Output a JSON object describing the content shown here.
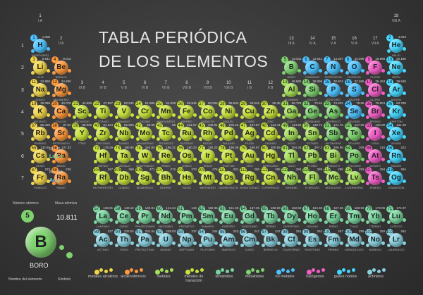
{
  "title": {
    "line1": "TABLA PERIÓDICA",
    "line2": "DE LOS ELEMENTOS"
  },
  "colors": {
    "alkali": "#f2d64a",
    "alkaline": "#ff9a3c",
    "lanthanide": "#7ad6a0",
    "actinide": "#8ad1e0",
    "transition": "#c9e23c",
    "post": "#a6e05a",
    "metalloid": "#7ed36f",
    "nonmetal": "#4cc3ff",
    "halogen": "#f35fc7",
    "noble": "#45d8ff"
  },
  "rows": [
    "1",
    "2",
    "3",
    "4",
    "5",
    "6",
    "7"
  ],
  "groups": [
    {
      "n": "1",
      "s": "I A"
    },
    {
      "n": "2",
      "s": "II A"
    },
    {
      "n": "3",
      "s": "III B"
    },
    {
      "n": "4",
      "s": "IV B"
    },
    {
      "n": "5",
      "s": "V B"
    },
    {
      "n": "6",
      "s": "VI B"
    },
    {
      "n": "7",
      "s": "VII B"
    },
    {
      "n": "8",
      "s": "VIII B"
    },
    {
      "n": "9",
      "s": "VIII B"
    },
    {
      "n": "10",
      "s": "VIII B"
    },
    {
      "n": "11",
      "s": "I B"
    },
    {
      "n": "12",
      "s": "II B"
    },
    {
      "n": "13",
      "s": "III A"
    },
    {
      "n": "14",
      "s": "IV A"
    },
    {
      "n": "15",
      "s": "V A"
    },
    {
      "n": "16",
      "s": "VI A"
    },
    {
      "n": "17",
      "s": "VII A"
    },
    {
      "n": "18",
      "s": "VIII A"
    }
  ],
  "ranges": {
    "la": "La-Lu",
    "la_nums": "57 - 71",
    "ac": "Ac-Lr",
    "ac_nums": "89 - 103"
  },
  "key": {
    "number": "5",
    "symbol": "B",
    "mass": "10.811",
    "name": "BORO",
    "label_number": "Número atómico",
    "label_mass": "Masa atómica",
    "label_name": "Nombre del elemento",
    "label_symbol": "Símbolo"
  },
  "legend": [
    {
      "label": "metales alcalinos",
      "color": "alkali"
    },
    {
      "label": "alcalinotérreos",
      "color": "alkaline"
    },
    {
      "label": "metales",
      "color": "post"
    },
    {
      "label": "metales de transición",
      "color": "transition"
    },
    {
      "label": "lantánidos",
      "color": "lanthanide"
    },
    {
      "label": "metaloides",
      "color": "metalloid"
    },
    {
      "label": "no metales",
      "color": "nonmetal"
    },
    {
      "label": "halógenos",
      "color": "halogen"
    },
    {
      "label": "gases nobles",
      "color": "noble"
    },
    {
      "label": "actínidos",
      "color": "actinide"
    }
  ],
  "elements": [
    [
      "1",
      "H",
      1,
      1,
      "nonmetal",
      "1.008",
      "HIDRÓGENO"
    ],
    [
      "2",
      "He",
      1,
      18,
      "noble",
      "4.003",
      "HELIO"
    ],
    [
      "3",
      "Li",
      2,
      1,
      "alkali",
      "6.941",
      "LITIO"
    ],
    [
      "4",
      "Be",
      2,
      2,
      "alkaline",
      "9.012",
      "BERILIO"
    ],
    [
      "5",
      "B",
      2,
      13,
      "metalloid",
      "10.811",
      "BORO"
    ],
    [
      "6",
      "C",
      2,
      14,
      "nonmetal",
      "12.011",
      "CARBONO"
    ],
    [
      "7",
      "N",
      2,
      15,
      "nonmetal",
      "14.007",
      "NITRÓGENO"
    ],
    [
      "8",
      "O",
      2,
      16,
      "nonmetal",
      "15.999",
      "OXÍGENO"
    ],
    [
      "9",
      "F",
      2,
      17,
      "halogen",
      "18.998",
      "FLÚOR"
    ],
    [
      "10",
      "Ne",
      2,
      18,
      "noble",
      "20.180",
      "NEÓN"
    ],
    [
      "11",
      "Na",
      3,
      1,
      "alkali",
      "22.990",
      "SODIO"
    ],
    [
      "12",
      "Mg",
      3,
      2,
      "alkaline",
      "24.305",
      "MAGNESIO"
    ],
    [
      "13",
      "Al",
      3,
      13,
      "post",
      "26.982",
      "ALUMINIO"
    ],
    [
      "14",
      "Si",
      3,
      14,
      "metalloid",
      "28.086",
      "SILICIO"
    ],
    [
      "15",
      "P",
      3,
      15,
      "nonmetal",
      "30.974",
      "FÓSFORO"
    ],
    [
      "16",
      "S",
      3,
      16,
      "nonmetal",
      "32.065",
      "AZUFRE"
    ],
    [
      "17",
      "Cl",
      3,
      17,
      "halogen",
      "35.453",
      "CLORO"
    ],
    [
      "18",
      "Ar",
      3,
      18,
      "noble",
      "39.948",
      "ARGÓN"
    ],
    [
      "19",
      "K",
      4,
      1,
      "alkali",
      "39.098",
      "POTASIO"
    ],
    [
      "20",
      "Ca",
      4,
      2,
      "alkaline",
      "40.078",
      "CALCIO"
    ],
    [
      "21",
      "Sc",
      4,
      3,
      "transition",
      "44.956",
      "ESCANDIO"
    ],
    [
      "22",
      "Ti",
      4,
      4,
      "transition",
      "47.867",
      "TITANIO"
    ],
    [
      "23",
      "V",
      4,
      5,
      "transition",
      "50.942",
      "VANADIO"
    ],
    [
      "24",
      "Cr",
      4,
      6,
      "transition",
      "51.996",
      "CROMO"
    ],
    [
      "25",
      "Mn",
      4,
      7,
      "transition",
      "54.938",
      "MANGANESO"
    ],
    [
      "26",
      "Fe",
      4,
      8,
      "transition",
      "55.845",
      "HIERRO"
    ],
    [
      "27",
      "Co",
      4,
      9,
      "transition",
      "58.933",
      "COBALTO"
    ],
    [
      "28",
      "Ni",
      4,
      10,
      "transition",
      "58.693",
      "NÍQUEL"
    ],
    [
      "29",
      "Cu",
      4,
      11,
      "transition",
      "63.546",
      "COBRE"
    ],
    [
      "30",
      "Zn",
      4,
      12,
      "transition",
      "65.38",
      "ZINC"
    ],
    [
      "31",
      "Ga",
      4,
      13,
      "post",
      "69.723",
      "GALIO"
    ],
    [
      "32",
      "Ge",
      4,
      14,
      "metalloid",
      "72.64",
      "GERMANIO"
    ],
    [
      "33",
      "As",
      4,
      15,
      "metalloid",
      "74.922",
      "ARSÉNICO"
    ],
    [
      "34",
      "Se",
      4,
      16,
      "nonmetal",
      "78.96",
      "SELENIO"
    ],
    [
      "35",
      "Br",
      4,
      17,
      "halogen",
      "79.904",
      "BROMO"
    ],
    [
      "36",
      "Kr",
      4,
      18,
      "noble",
      "83.798",
      "KRIPTÓN"
    ],
    [
      "37",
      "Rb",
      5,
      1,
      "alkali",
      "85.468",
      "RUBIDIO"
    ],
    [
      "38",
      "Sr",
      5,
      2,
      "alkaline",
      "87.62",
      "ESTRONCIO"
    ],
    [
      "39",
      "Y",
      5,
      3,
      "transition",
      "88.906",
      "ITRIO"
    ],
    [
      "40",
      "Zr",
      5,
      4,
      "transition",
      "91.224",
      "CIRCONIO"
    ],
    [
      "41",
      "Nb",
      5,
      5,
      "transition",
      "92.906",
      "NIOBIO"
    ],
    [
      "42",
      "Mo",
      5,
      6,
      "transition",
      "95.96",
      "MOLIBDENO"
    ],
    [
      "43",
      "Tc",
      5,
      7,
      "transition",
      "98",
      "TECNECIO"
    ],
    [
      "44",
      "Ru",
      5,
      8,
      "transition",
      "101.07",
      "RUTENIO"
    ],
    [
      "45",
      "Rh",
      5,
      9,
      "transition",
      "102.91",
      "RODIO"
    ],
    [
      "46",
      "Pd",
      5,
      10,
      "transition",
      "106.42",
      "PALADIO"
    ],
    [
      "47",
      "Ag",
      5,
      11,
      "transition",
      "107.87",
      "PLATA"
    ],
    [
      "48",
      "Cd",
      5,
      12,
      "transition",
      "112.41",
      "CADMIO"
    ],
    [
      "49",
      "In",
      5,
      13,
      "post",
      "114.82",
      "INDIO"
    ],
    [
      "50",
      "Sn",
      5,
      14,
      "post",
      "118.71",
      "ESTAÑO"
    ],
    [
      "51",
      "Sb",
      5,
      15,
      "metalloid",
      "121.76",
      "ANTIMONIO"
    ],
    [
      "52",
      "Te",
      5,
      16,
      "metalloid",
      "127.60",
      "TELURIO"
    ],
    [
      "53",
      "I",
      5,
      17,
      "halogen",
      "126.90",
      "YODO"
    ],
    [
      "54",
      "Xe",
      5,
      18,
      "noble",
      "131.29",
      "XENÓN"
    ],
    [
      "55",
      "Cs",
      6,
      1,
      "alkali",
      "132.91",
      "CESIO"
    ],
    [
      "56",
      "Ba",
      6,
      2,
      "alkaline",
      "137.33",
      "BARIO"
    ],
    [
      "72",
      "Hf",
      6,
      4,
      "transition",
      "178.49",
      "HAFNIO"
    ],
    [
      "73",
      "Ta",
      6,
      5,
      "transition",
      "180.95",
      "TÁNTALO"
    ],
    [
      "74",
      "W",
      6,
      6,
      "transition",
      "183.84",
      "WOLFRAMIO"
    ],
    [
      "75",
      "Re",
      6,
      7,
      "transition",
      "186.21",
      "RENIO"
    ],
    [
      "76",
      "Os",
      6,
      8,
      "transition",
      "190.23",
      "OSMIO"
    ],
    [
      "77",
      "Ir",
      6,
      9,
      "transition",
      "192.22",
      "IRIDIO"
    ],
    [
      "78",
      "Pt",
      6,
      10,
      "transition",
      "195.08",
      "PLATINO"
    ],
    [
      "79",
      "Au",
      6,
      11,
      "transition",
      "196.97",
      "ORO"
    ],
    [
      "80",
      "Hg",
      6,
      12,
      "transition",
      "200.59",
      "MERCURIO"
    ],
    [
      "81",
      "Tl",
      6,
      13,
      "post",
      "204.38",
      "TALIO"
    ],
    [
      "82",
      "Pb",
      6,
      14,
      "post",
      "207.2",
      "PLOMO"
    ],
    [
      "83",
      "Bi",
      6,
      15,
      "post",
      "208.98",
      "BISMUTO"
    ],
    [
      "84",
      "Po",
      6,
      16,
      "metalloid",
      "209",
      "POLONIO"
    ],
    [
      "85",
      "At",
      6,
      17,
      "halogen",
      "210",
      "ASTATO"
    ],
    [
      "86",
      "Rn",
      6,
      18,
      "noble",
      "222",
      "RADÓN"
    ],
    [
      "87",
      "Fr",
      7,
      1,
      "alkali",
      "223",
      "FRANCIO"
    ],
    [
      "88",
      "Ra",
      7,
      2,
      "alkaline",
      "226",
      "RADIO"
    ],
    [
      "104",
      "Rf",
      7,
      4,
      "transition",
      "267",
      "RUTHERFORDIO"
    ],
    [
      "105",
      "Db",
      7,
      5,
      "transition",
      "268",
      "DUBNIO"
    ],
    [
      "106",
      "Sg",
      7,
      6,
      "transition",
      "271",
      "SEABORGIO"
    ],
    [
      "107",
      "Bh",
      7,
      7,
      "transition",
      "272",
      "BOHRIO"
    ],
    [
      "108",
      "Hs",
      7,
      8,
      "transition",
      "270",
      "HASIO"
    ],
    [
      "109",
      "Mt",
      7,
      9,
      "transition",
      "276",
      "MEITNERIO"
    ],
    [
      "110",
      "Ds",
      7,
      10,
      "transition",
      "281",
      "DARMSTADTIO"
    ],
    [
      "111",
      "Rg",
      7,
      11,
      "transition",
      "280",
      "ROENTGENIO"
    ],
    [
      "112",
      "Cn",
      7,
      12,
      "transition",
      "285",
      "COPERNICIO"
    ],
    [
      "113",
      "Nh",
      7,
      13,
      "post",
      "284",
      "NIHONIO"
    ],
    [
      "114",
      "Fl",
      7,
      14,
      "post",
      "289",
      "FLEROVIO"
    ],
    [
      "115",
      "Mc",
      7,
      15,
      "post",
      "288",
      "MOSCOVIO"
    ],
    [
      "116",
      "Lv",
      7,
      16,
      "post",
      "293",
      "LIVERMORIO"
    ],
    [
      "117",
      "Ts",
      7,
      17,
      "halogen",
      "294",
      "TENESO"
    ],
    [
      "118",
      "Og",
      7,
      18,
      "noble",
      "294",
      "OGANESÓN"
    ],
    [
      "57",
      "La",
      9,
      4,
      "lanthanide",
      "138.91",
      "LANTANO"
    ],
    [
      "58",
      "Ce",
      9,
      5,
      "lanthanide",
      "140.12",
      "CERIO"
    ],
    [
      "59",
      "Pr",
      9,
      6,
      "lanthanide",
      "140.91",
      "PRASEODIMIO"
    ],
    [
      "60",
      "Nd",
      9,
      7,
      "lanthanide",
      "144.24",
      "NEODIMIO"
    ],
    [
      "61",
      "Pm",
      9,
      8,
      "lanthanide",
      "145",
      "PROMETIO"
    ],
    [
      "62",
      "Sm",
      9,
      9,
      "lanthanide",
      "150.36",
      "SAMARIO"
    ],
    [
      "63",
      "Eu",
      9,
      10,
      "lanthanide",
      "151.96",
      "EUROPIO"
    ],
    [
      "64",
      "Gd",
      9,
      11,
      "lanthanide",
      "157.25",
      "GADOLINIO"
    ],
    [
      "65",
      "Tb",
      9,
      12,
      "lanthanide",
      "158.93",
      "TERBIO"
    ],
    [
      "66",
      "Dy",
      9,
      13,
      "lanthanide",
      "162.50",
      "DISPROSIO"
    ],
    [
      "67",
      "Ho",
      9,
      14,
      "lanthanide",
      "164.93",
      "HOLMIO"
    ],
    [
      "68",
      "Er",
      9,
      15,
      "lanthanide",
      "167.26",
      "ERBIO"
    ],
    [
      "69",
      "Tm",
      9,
      16,
      "lanthanide",
      "168.93",
      "TULIO"
    ],
    [
      "70",
      "Yb",
      9,
      17,
      "lanthanide",
      "173.05",
      "ITERBIO"
    ],
    [
      "71",
      "Lu",
      9,
      18,
      "lanthanide",
      "174.97",
      "LUTECIO"
    ],
    [
      "89",
      "Ac",
      10,
      4,
      "actinide",
      "227",
      "ACTINIO"
    ],
    [
      "90",
      "Th",
      10,
      5,
      "actinide",
      "232.04",
      "TORIO"
    ],
    [
      "91",
      "Pa",
      10,
      6,
      "actinide",
      "231.04",
      "PROTACTINIO"
    ],
    [
      "92",
      "U",
      10,
      7,
      "actinide",
      "238.03",
      "URANIO"
    ],
    [
      "93",
      "Np",
      10,
      8,
      "actinide",
      "237",
      "NEPTUNIO"
    ],
    [
      "94",
      "Pu",
      10,
      9,
      "actinide",
      "244",
      "PLUTONIO"
    ],
    [
      "95",
      "Am",
      10,
      10,
      "actinide",
      "243",
      "AMERICIO"
    ],
    [
      "96",
      "Cm",
      10,
      11,
      "actinide",
      "247",
      "CURIO"
    ],
    [
      "97",
      "Bk",
      10,
      12,
      "actinide",
      "247",
      "BERKELIO"
    ],
    [
      "98",
      "Cf",
      10,
      13,
      "actinide",
      "251",
      "CALIFORNIO"
    ],
    [
      "99",
      "Es",
      10,
      14,
      "actinide",
      "252",
      "EINSTENIO"
    ],
    [
      "100",
      "Fm",
      10,
      15,
      "actinide",
      "257",
      "FERMIO"
    ],
    [
      "101",
      "Md",
      10,
      16,
      "actinide",
      "258",
      "MENDELEVIO"
    ],
    [
      "102",
      "No",
      10,
      17,
      "actinide",
      "259",
      "NOBELIO"
    ],
    [
      "103",
      "Lr",
      10,
      18,
      "actinide",
      "262",
      "LAURENCIO"
    ]
  ]
}
